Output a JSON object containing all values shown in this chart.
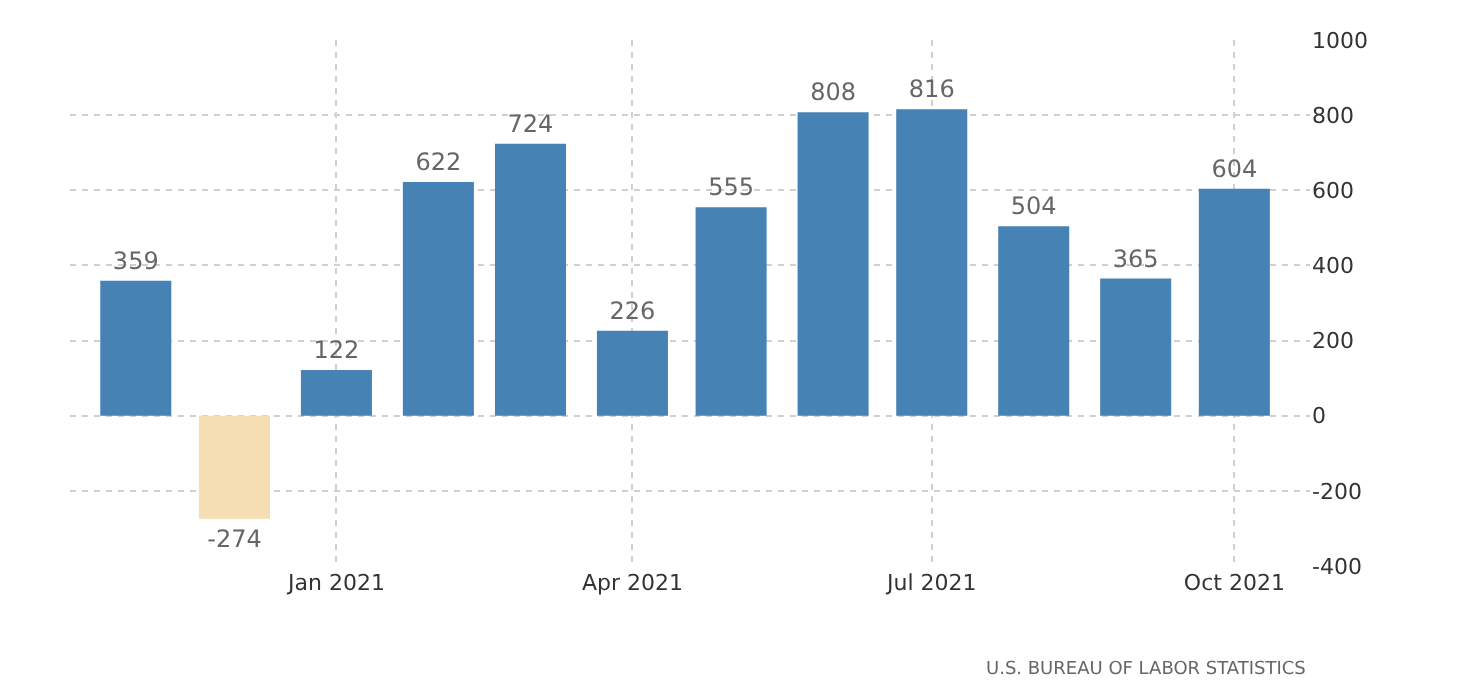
{
  "chart_data": {
    "type": "bar",
    "x": [
      "2020-11",
      "2020-12",
      "2021-01",
      "2021-02",
      "2021-03",
      "2021-04",
      "2021-05",
      "2021-06",
      "2021-07",
      "2021-08",
      "2021-09",
      "2021-10"
    ],
    "values": [
      359,
      -274,
      122,
      622,
      724,
      226,
      555,
      808,
      816,
      504,
      365,
      604
    ],
    "colors": [
      "#4682b4",
      "#f5deb3",
      "#4682b4",
      "#4682b4",
      "#4682b4",
      "#4682b4",
      "#4682b4",
      "#4682b4",
      "#4682b4",
      "#4682b4",
      "#4682b4",
      "#4682b4"
    ],
    "data_labels": true,
    "xlim": [
      "2020-10-12",
      "2021-10-24"
    ],
    "xticks": [
      {
        "value": "2021-01",
        "label": "Jan 2021"
      },
      {
        "value": "2021-04",
        "label": "Apr 2021"
      },
      {
        "value": "2021-07",
        "label": "Jul 2021"
      },
      {
        "value": "2021-10",
        "label": "Oct 2021"
      }
    ],
    "ylim": [
      -400,
      1000
    ],
    "yticks": [
      -400,
      -200,
      0,
      200,
      400,
      600,
      800,
      1000
    ],
    "grid": true,
    "legend": false,
    "annotations": [
      "U.S. BUREAU OF LABOR STATISTICS"
    ]
  }
}
